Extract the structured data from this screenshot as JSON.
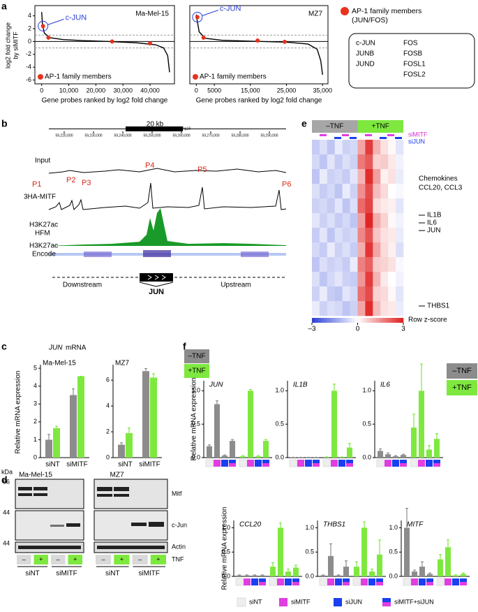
{
  "panel_labels": [
    "a",
    "b",
    "c",
    "d",
    "e",
    "f"
  ],
  "panel_a": {
    "y_label": [
      "log2 fold change",
      "by siMITF"
    ],
    "charts": [
      {
        "type": "line",
        "title": "Ma-Mel-15",
        "x_label": "Gene probes ranked by log2 fold change",
        "x": [
          0,
          300,
          1000,
          3000,
          8000,
          15000,
          25000,
          35000,
          42000,
          45000,
          46500,
          47200
        ],
        "values": [
          4.6,
          2.6,
          1.3,
          0.6,
          0.3,
          0.15,
          0,
          -0.2,
          -0.5,
          -1,
          -2.2,
          -4.8
        ],
        "color": "#000000",
        "points": {
          "x": [
            500,
            2500,
            26000,
            40000
          ],
          "values": [
            2.4,
            0.6,
            0,
            -0.3
          ],
          "color": "#e8321e"
        },
        "point_label": "AP-1 family members",
        "callout": "c-JUN",
        "xlim": [
          -2500,
          49000
        ],
        "ylim": [
          -6.6,
          5.6
        ],
        "xticks": [
          0,
          {
            "value": 10000,
            "label": "10,000"
          },
          {
            "value": 20000,
            "label": "20,000"
          },
          {
            "value": 30000,
            "label": "30,000"
          },
          {
            "value": 40000,
            "label": "40,000"
          }
        ],
        "yticks": [
          -6,
          -4,
          -2,
          0,
          2,
          4
        ],
        "dashed_lines": [
          1,
          -1
        ]
      },
      {
        "type": "line",
        "title": "MZ7",
        "x_label": "Gene probes ranked by log2 fold change",
        "x": [
          0,
          200,
          800,
          2500,
          7000,
          15000,
          25000,
          31000,
          33500,
          34500,
          35000
        ],
        "values": [
          4.2,
          3.4,
          1.5,
          0.5,
          0.2,
          0.05,
          -0.1,
          -0.4,
          -1.2,
          -3,
          -5.2
        ],
        "color": "#000000",
        "points": {
          "x": [
            300,
            2000,
            17000,
            24500
          ],
          "values": [
            3.8,
            0.6,
            0.15,
            -0.05
          ],
          "color": "#e8321e"
        },
        "point_label": "AP-1 family members",
        "callout": "c-JUN",
        "xlim": [
          -1800,
          36500
        ],
        "ylim": [
          -6.6,
          5.6
        ],
        "xticks": [
          0,
          5000,
          {
            "value": 15000,
            "label": "15,000"
          },
          {
            "value": 25000,
            "label": "25,000"
          },
          {
            "value": 35000,
            "label": "35,000"
          }
        ],
        "dashed_lines": [
          1,
          -1
        ]
      }
    ],
    "legend": {
      "title": [
        "AP-1 family members",
        "(JUN/FOS)"
      ],
      "genes": [
        "c-JUN",
        "JUNB",
        "JUND",
        "FOS",
        "FOSB",
        "FOSL1",
        "FOSL2"
      ]
    }
  },
  "panel_b": {
    "scale": "20 kb",
    "assembly": "hg19",
    "coordinates": [
      "59,220,000",
      "59,230,000",
      "59,240,000",
      "59,250,000",
      "59,260,000",
      "59,270,000",
      "59,280,000",
      "59,290,000"
    ],
    "tracks": [
      "Input",
      "3HA-MITF",
      "H3K27ac",
      "HFM",
      "H3K27ac",
      "Encode"
    ],
    "peaks": [
      "P1",
      "P2",
      "P3",
      "P4",
      "P5",
      "P6"
    ],
    "gene": "JUN",
    "downstream": "Downstream",
    "upstream": "Upstream"
  },
  "panel_c": {
    "title": {
      "gene": "JUN",
      "suffix": "mRNA"
    },
    "y_label": "Relative mRNA expression",
    "legend": [
      {
        "name": "–TNF",
        "color": "#8c8c8c"
      },
      {
        "name": "+TNF",
        "color": "#7ee83f"
      }
    ],
    "charts": [
      {
        "type": "bar",
        "title": "Ma-Mel-15",
        "categories": [
          "siNT",
          "siMITF"
        ],
        "ylim": [
          0,
          5.2
        ],
        "yticks": [
          0,
          1,
          2,
          3,
          4,
          5
        ],
        "series": [
          {
            "values": [
              1.0,
              3.5
            ],
            "errors": [
              0.3,
              0.35
            ]
          },
          {
            "values": [
              1.65,
              4.55
            ],
            "errors": [
              0.1,
              0
            ]
          }
        ]
      },
      {
        "type": "bar",
        "title": "MZ7",
        "categories": [
          "siNT",
          "siMITF"
        ],
        "ylim": [
          0,
          7.2
        ],
        "yticks": [
          0,
          2,
          4,
          6
        ],
        "series": [
          {
            "values": [
              1.0,
              6.7
            ],
            "errors": [
              0.15,
              0.2
            ]
          },
          {
            "values": [
              1.9,
              6.2
            ],
            "errors": [
              0.4,
              0.3
            ]
          }
        ]
      }
    ]
  },
  "panel_d": {
    "unit": "kDa",
    "markers": [
      66,
      44,
      44
    ],
    "proteins": [
      "Mitf",
      "c-Jun",
      "Actin"
    ],
    "treatment": "TNF",
    "blots": [
      {
        "title": "Ma-Mel-15",
        "tnf": [
          "–",
          "+",
          "–",
          "+"
        ],
        "groups": [
          "siNT",
          "siMITF"
        ]
      },
      {
        "title": "MZ7",
        "tnf": [
          "–",
          "+",
          "–",
          "+"
        ],
        "groups": [
          "siNT",
          "siMITF"
        ]
      }
    ]
  },
  "panel_e": {
    "type": "heatmap",
    "columns": [
      "–TNF",
      "+TNF"
    ],
    "knockdowns": [
      "siMITF",
      "siJUN"
    ],
    "annotations": [
      "Chemokines",
      "CCL20, CCL3",
      "IL1B",
      "IL6",
      "JUN",
      "THBS1"
    ],
    "values": [
      [
        -0.8,
        -0.5,
        -0.9,
        -0.3,
        -0.7,
        -0.6,
        1.2,
        2.6,
        1.0,
        0.4,
        0.1,
        -0.4
      ],
      [
        -0.6,
        -0.9,
        -0.4,
        -0.8,
        -0.5,
        -0.7,
        1.8,
        2.2,
        0.6,
        0.7,
        0.3,
        -0.2
      ],
      [
        -0.9,
        -0.3,
        -0.7,
        -0.6,
        -0.8,
        -0.4,
        1.0,
        2.8,
        1.3,
        0.2,
        0.4,
        -0.3
      ],
      [
        -0.5,
        -0.8,
        -0.6,
        -0.9,
        -0.3,
        -0.7,
        1.5,
        2.4,
        0.9,
        0.5,
        0.0,
        -0.1
      ],
      [
        -0.7,
        -0.6,
        -0.8,
        -0.4,
        -0.9,
        -0.5,
        2.0,
        2.5,
        0.5,
        0.3,
        0.2,
        -0.4
      ],
      [
        -0.4,
        -0.7,
        -0.5,
        -0.8,
        -0.6,
        -0.9,
        1.3,
        2.9,
        1.1,
        0.6,
        0.1,
        -0.2
      ],
      [
        -0.8,
        -0.4,
        -0.9,
        -0.5,
        -0.7,
        -0.6,
        1.6,
        2.3,
        0.8,
        0.4,
        0.3,
        -0.3
      ],
      [
        -0.6,
        -0.8,
        -0.3,
        -0.7,
        -0.5,
        -0.8,
        1.1,
        2.7,
        1.2,
        0.5,
        0.2,
        -0.5
      ],
      [
        -0.9,
        -0.5,
        -0.7,
        -0.6,
        -0.8,
        -0.3,
        1.7,
        2.1,
        0.7,
        0.6,
        0.4,
        -0.1
      ],
      [
        -0.5,
        -0.9,
        -0.6,
        -0.4,
        -0.7,
        -0.8,
        1.4,
        2.6,
        1.0,
        0.3,
        0.0,
        -0.2
      ],
      [
        -0.7,
        -0.3,
        -0.8,
        -0.9,
        -0.4,
        -0.6,
        1.9,
        2.4,
        0.6,
        0.5,
        0.1,
        -0.4
      ],
      [
        -0.3,
        -0.7,
        -0.5,
        -0.6,
        -0.9,
        -0.7,
        1.2,
        2.8,
        0.9,
        0.4,
        0.3,
        -0.3
      ]
    ],
    "scale": {
      "label": "Row z-score",
      "min": -3,
      "max": 3,
      "colors": [
        "#2a3fd6",
        "#ffffff",
        "#e01e1e"
      ],
      "ticks": [
        {
          "value": -3,
          "label": "–3"
        },
        0,
        3
      ]
    }
  },
  "panel_f": {
    "legend": [
      {
        "name": "–TNF",
        "color": "#8c8c8c"
      },
      {
        "name": "+TNF",
        "color": "#7ee83f"
      }
    ],
    "conditions": [
      {
        "name": "siNT",
        "colors": [
          "#eeeeee"
        ]
      },
      {
        "name": "siMITF",
        "colors": [
          "#e03ee0"
        ]
      },
      {
        "name": "siJUN",
        "colors": [
          "#1a3ff0"
        ]
      },
      {
        "name": "siMITF+siJUN",
        "colors": [
          "#1a3ff0",
          "#e03ee0"
        ]
      }
    ],
    "rows": [
      {
        "y_label": "Relative mRNA expression",
        "charts": [
          {
            "type": "bar",
            "gene": "JUN",
            "ylim": [
              0,
              1.15
            ],
            "yticks": [
              {
                "value": 0,
                "label": "0.0"
              },
              0.5,
              {
                "value": 1,
                "label": "1.0"
              }
            ],
            "series": [
              {
                "values": [
                  0.17,
                  0.8,
                  0.03,
                  0.25
                ],
                "errors": [
                  0.02,
                  0.05,
                  0.01,
                  0.02
                ]
              },
              {
                "values": [
                  0.02,
                  1.0,
                  0.02,
                  0.25
                ],
                "errors": [
                  0.01,
                  0.02,
                  0.01,
                  0.02
                ]
              }
            ]
          },
          {
            "type": "bar",
            "gene": "IL1B",
            "ylim": [
              0,
              1.15
            ],
            "yticks": [
              {
                "value": 0,
                "label": "0.0"
              },
              0.5,
              {
                "value": 1,
                "label": "1.0"
              }
            ],
            "series": [
              {
                "values": [
                  0.005,
                  0.005,
                  0.005,
                  0.005
                ],
                "errors": [
                  0,
                  0,
                  0,
                  0
                ]
              },
              {
                "values": [
                  0.01,
                  1.0,
                  0.01,
                  0.15
                ],
                "errors": [
                  0,
                  0.1,
                  0,
                  0.06
                ]
              }
            ]
          },
          {
            "type": "bar",
            "gene": "IL6",
            "ylim": [
              0,
              1.15
            ],
            "yticks": [
              {
                "value": 0,
                "label": "0.0"
              },
              0.5,
              {
                "value": 1,
                "label": "1.0"
              }
            ],
            "series": [
              {
                "values": [
                  0.1,
                  0.05,
                  0.02,
                  0.04
                ],
                "errors": [
                  0.03,
                  0.02,
                  0.01,
                  0.01
                ]
              },
              {
                "values": [
                  0.45,
                  1.0,
                  0.12,
                  0.28
                ],
                "errors": [
                  0.2,
                  0.4,
                  0.06,
                  0.08
                ]
              }
            ]
          }
        ]
      },
      {
        "y_label": "Relative mRNA expression",
        "charts": [
          {
            "type": "bar",
            "gene": "CCL20",
            "ylim": [
              0,
              1.15
            ],
            "yticks": [
              {
                "value": 0,
                "label": "0.0"
              },
              0.5,
              {
                "value": 1,
                "label": "1.0"
              }
            ],
            "series": [
              {
                "values": [
                  0.02,
                  0.02,
                  0.02,
                  0.02
                ],
                "errors": [
                  0.01,
                  0.01,
                  0.01,
                  0.01
                ]
              },
              {
                "values": [
                  0.2,
                  1.0,
                  0.1,
                  0.18
                ],
                "errors": [
                  0.08,
                  0.1,
                  0.05,
                  0.05
                ]
              }
            ]
          },
          {
            "type": "bar",
            "gene": "THBS1",
            "ylim": [
              0,
              1.15
            ],
            "yticks": [
              {
                "value": 0,
                "label": "0.0"
              },
              0.5,
              {
                "value": 1,
                "label": "1.0"
              }
            ],
            "series": [
              {
                "values": [
                  0.02,
                  0.42,
                  0.02,
                  0.2
                ],
                "errors": [
                  0.01,
                  0.25,
                  0.01,
                  0.12
                ]
              },
              {
                "values": [
                  0.2,
                  1.0,
                  0.1,
                  0.45
                ],
                "errors": [
                  0.1,
                  0.12,
                  0.05,
                  0.3
                ]
              }
            ]
          },
          {
            "type": "bar",
            "gene": "MITF",
            "ylim": [
              0,
              1.15
            ],
            "yticks": [
              {
                "value": 0,
                "label": "0.0"
              },
              0.5,
              {
                "value": 1,
                "label": "1.0"
              }
            ],
            "series": [
              {
                "values": [
                  1.0,
                  0.1,
                  0.2,
                  0.05
                ],
                "errors": [
                  0.4,
                  0.03,
                  0.1,
                  0.02
                ]
              },
              {
                "values": [
                  0.35,
                  0.6,
                  0.02,
                  0.05
                ],
                "errors": [
                  0.1,
                  0.15,
                  0.01,
                  0.02
                ]
              }
            ]
          }
        ]
      }
    ]
  }
}
